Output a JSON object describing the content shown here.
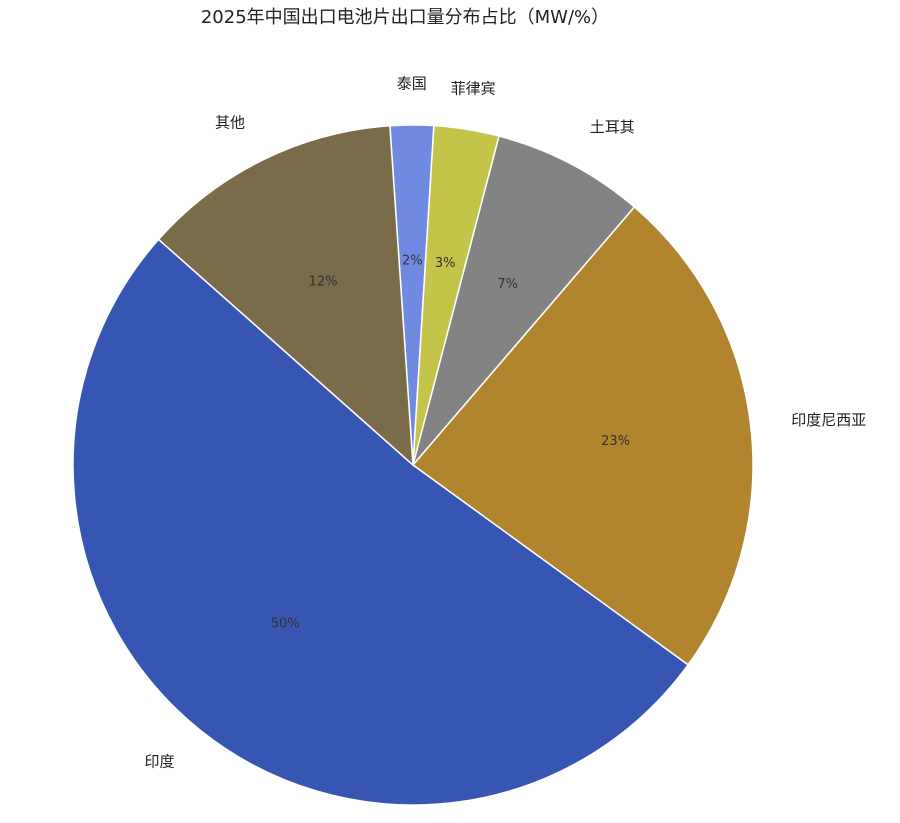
{
  "chart_data": {
    "type": "pie",
    "title": "2025年中国出口电池片出口量分布占比（MW/%）",
    "categories": [
      "泰国",
      "菲律宾",
      "土耳其",
      "印度尼西亚",
      "印度",
      "其他"
    ],
    "values": [
      2,
      3,
      7,
      23,
      50,
      12
    ],
    "value_labels": [
      "2%",
      "3%",
      "7%",
      "23%",
      "50%",
      "12%"
    ],
    "colors": [
      "#6f8ae0",
      "#c4c44a",
      "#838383",
      "#b0852e",
      "#3755b3",
      "#7a6b4b"
    ]
  }
}
